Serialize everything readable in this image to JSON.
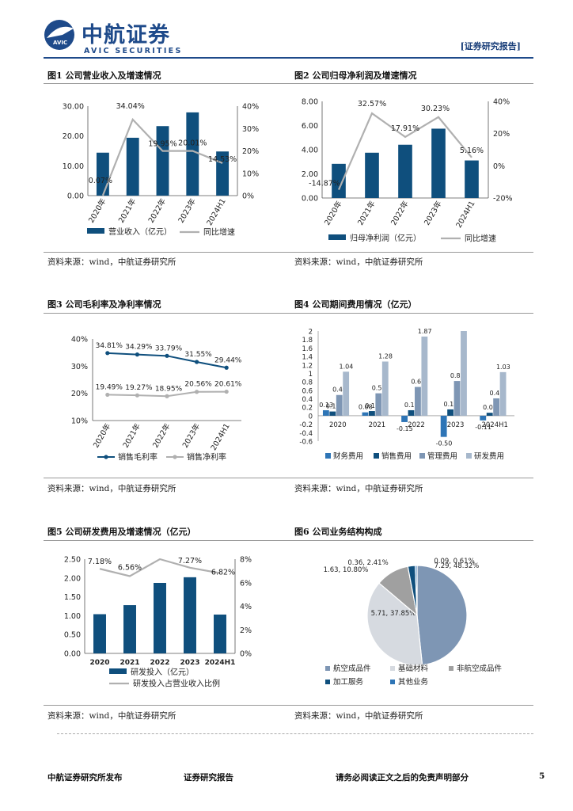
{
  "header": {
    "brand_cn": "中航证券",
    "brand_en": "AVIC SECURITIES",
    "logo_mark": "AVIC",
    "report_type": "[证券研究报告]"
  },
  "colors": {
    "dark_blue": "#0f4f7d",
    "gray_line": "#b0b0b0",
    "light_blue": "#a7b8cc",
    "light_gray": "#d6dae0",
    "mid_blue": "#2e75b6",
    "steel": "#7e96b4"
  },
  "figures": [
    {
      "title": "图1 公司营业收入及增速情况",
      "source": "资料来源：wind，中航证券研究所"
    },
    {
      "title": "图2 公司归母净利润及增速情况",
      "source": "资料来源：wind，中航证券研究所"
    },
    {
      "title": "图3 公司毛利率及净利率情况",
      "source": "资料来源：wind，中航证券研究所"
    },
    {
      "title": "图4 公司期间费用情况（亿元）",
      "source": "资料来源：wind，中航证券研究所"
    },
    {
      "title": "图5 公司研发费用及增速情况（亿元）",
      "source": "资料来源：wind，中航证券研究所"
    },
    {
      "title": "图6 公司业务结构构成",
      "source": "资料来源：wind，中航证券研究所"
    }
  ],
  "chart_data": [
    {
      "type": "bar",
      "categories": [
        "2020年",
        "2021年",
        "2022年",
        "2023年",
        "2024H1"
      ],
      "series": [
        {
          "name": "营业收入（亿元）",
          "values": [
            14.4,
            19.4,
            23.3,
            27.9,
            14.8
          ],
          "axis": "left"
        },
        {
          "name": "同比增速",
          "values": [
            0.07,
            34.04,
            19.95,
            20.01,
            14.53
          ],
          "labels": [
            "0.07%",
            "34.04%",
            "19.95%",
            "20.01%",
            "14.53%"
          ],
          "axis": "right",
          "render": "line"
        }
      ],
      "ylim": [
        0,
        30
      ],
      "yticks": [
        "0.00",
        "10.00",
        "20.00",
        "30.00"
      ],
      "y2lim": [
        0,
        40
      ],
      "y2ticks": [
        "0%",
        "10%",
        "20%",
        "30%",
        "40%"
      ]
    },
    {
      "type": "bar",
      "categories": [
        "2020年",
        "2021年",
        "2022年",
        "2023年",
        "2024H1"
      ],
      "series": [
        {
          "name": "归母净利润（亿元）",
          "values": [
            2.83,
            3.75,
            4.41,
            5.74,
            3.11
          ],
          "axis": "left"
        },
        {
          "name": "同比增速",
          "values": [
            -14.87,
            32.57,
            17.91,
            30.23,
            5.16
          ],
          "labels": [
            "-14.87%",
            "32.57%",
            "17.91%",
            "30.23%",
            "5.16%"
          ],
          "axis": "right",
          "render": "line"
        }
      ],
      "ylim": [
        0,
        8
      ],
      "yticks": [
        "0.00",
        "2.00",
        "4.00",
        "6.00",
        "8.00"
      ],
      "y2lim": [
        -20,
        40
      ],
      "y2ticks": [
        "-20%",
        "0%",
        "20%",
        "40%"
      ]
    },
    {
      "type": "line",
      "categories": [
        "2020年",
        "2021年",
        "2022年",
        "2023年",
        "2024H1"
      ],
      "series": [
        {
          "name": "销售毛利率",
          "values": [
            34.81,
            34.29,
            33.79,
            31.55,
            29.44
          ],
          "labels": [
            "34.81%",
            "34.29%",
            "33.79%",
            "31.55%",
            "29.44%"
          ]
        },
        {
          "name": "销售净利率",
          "values": [
            19.49,
            19.27,
            18.95,
            20.56,
            20.61
          ],
          "labels": [
            "19.49%",
            "19.27%",
            "18.95%",
            "20.56%",
            "20.61%"
          ]
        }
      ],
      "ylim": [
        10,
        40
      ],
      "yticks": [
        "10%",
        "20%",
        "30%",
        "40%"
      ]
    },
    {
      "type": "bar",
      "categories": [
        "2020",
        "2021",
        "2022",
        "2023",
        "2024H1"
      ],
      "series": [
        {
          "name": "财务费用",
          "values": [
            0.13,
            0.08,
            -0.15,
            -0.5,
            -0.11
          ],
          "labels": [
            "0.13",
            "0.08",
            "-0.15",
            "-0.50",
            "-0.11"
          ]
        },
        {
          "name": "销售费用",
          "values": [
            0.1,
            0.11,
            0.13,
            0.15,
            0.07
          ],
          "labels": [
            "0.10",
            "0.11",
            "0.13",
            "0.15",
            "0.07"
          ]
        },
        {
          "name": "管理费用",
          "values": [
            0.49,
            0.53,
            0.68,
            0.82,
            0.41
          ],
          "labels": [
            "0.49",
            "0.53",
            "0.68",
            "0.82",
            "0.41"
          ]
        },
        {
          "name": "研发费用",
          "values": [
            1.04,
            1.28,
            1.87,
            2.0,
            1.03
          ],
          "labels": [
            "1.04",
            "1.28",
            "1.87",
            "",
            "1.03"
          ]
        }
      ],
      "ylim": [
        -0.6,
        2
      ],
      "yticks": [
        "-0.6",
        "-0.4",
        "-0.2",
        "0",
        "0.2",
        "0.4",
        "0.6",
        "0.8",
        "1",
        "1.2",
        "1.4",
        "1.6",
        "1.8",
        "2"
      ]
    },
    {
      "type": "bar",
      "categories": [
        "2020",
        "2021",
        "2022",
        "2023",
        "2024H1"
      ],
      "series": [
        {
          "name": "研发投入（亿元）",
          "values": [
            1.04,
            1.28,
            1.87,
            2.02,
            1.03
          ],
          "axis": "left"
        },
        {
          "name": "研发投入占营业收入比例",
          "values": [
            7.18,
            6.56,
            8.0,
            7.27,
            6.82
          ],
          "labels": [
            "7.18%",
            "6.56%",
            "",
            "7.27%",
            "6.82%"
          ],
          "axis": "right",
          "render": "line"
        }
      ],
      "ylim": [
        0,
        2.5
      ],
      "yticks": [
        "0.00",
        "0.50",
        "1.00",
        "1.50",
        "2.00",
        "2.50"
      ],
      "y2lim": [
        0,
        8
      ],
      "y2ticks": [
        "0%",
        "2%",
        "4%",
        "6%",
        "8%"
      ]
    },
    {
      "type": "pie",
      "slices": [
        {
          "name": "航空成品件",
          "value": 7.29,
          "label": "7.29, 48.32%"
        },
        {
          "name": "基础材料",
          "value": 5.71,
          "label": "5.71, 37.85%"
        },
        {
          "name": "非航空成品件",
          "value": 1.63,
          "label": "1.63, 10.80%"
        },
        {
          "name": "加工服务",
          "value": 0.36,
          "label": "0.36, 2.41%"
        },
        {
          "name": "其他业务",
          "value": 0.09,
          "label": "0.09, 0.61%"
        }
      ]
    }
  ],
  "footer": {
    "left": "中航证券研究所发布",
    "middle": "证券研究报告",
    "right": "请务必阅读正文之后的免责声明部分",
    "page": "5"
  }
}
